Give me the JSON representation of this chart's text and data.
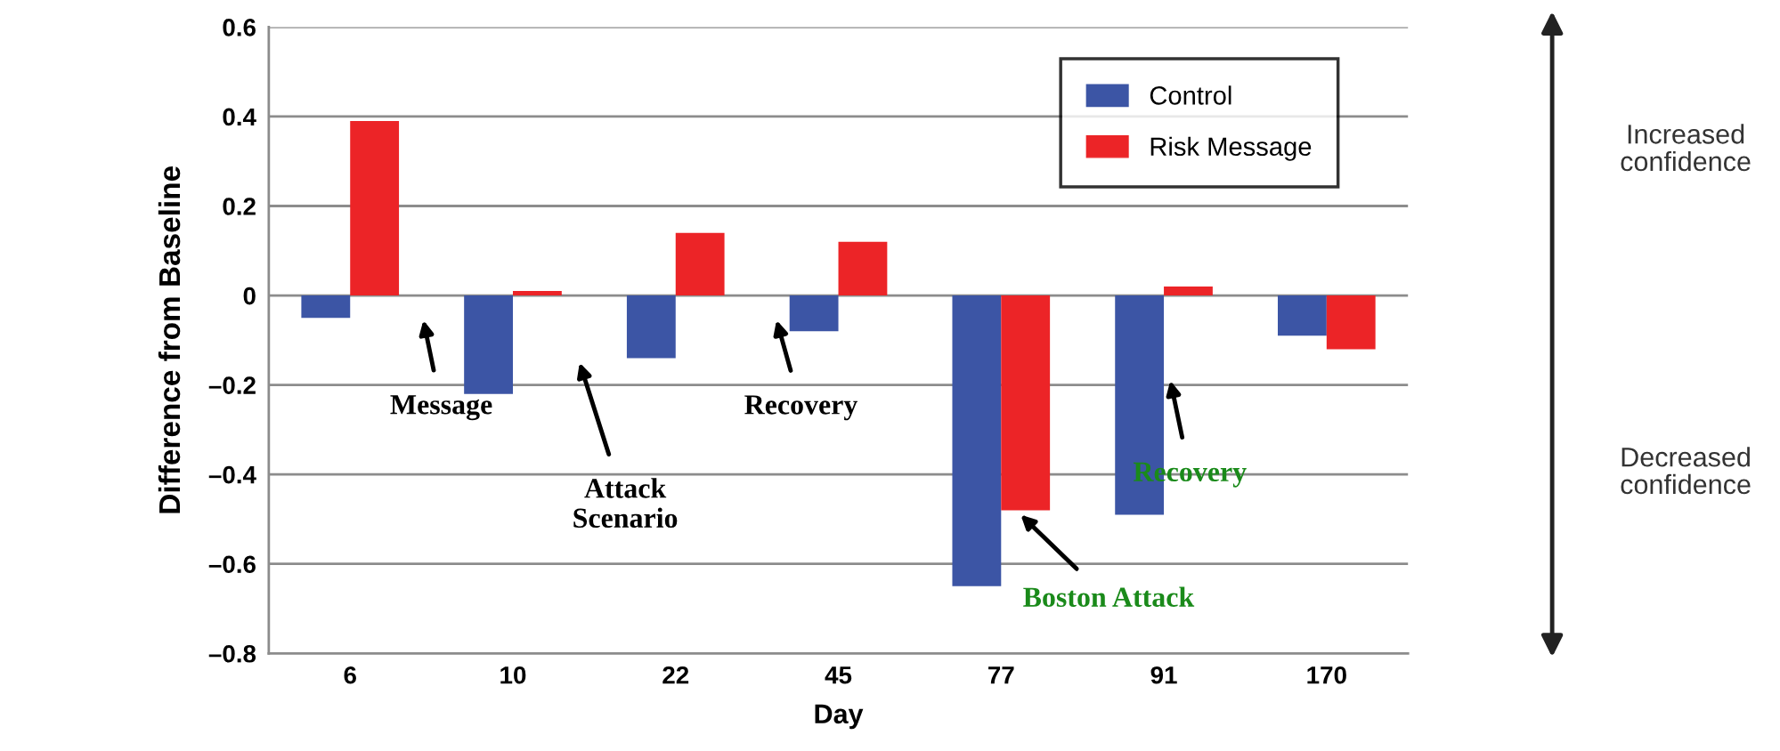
{
  "chart_data": {
    "type": "bar",
    "xlabel": "Day",
    "ylabel": "Difference from Baseline",
    "categories": [
      "6",
      "10",
      "22",
      "45",
      "77",
      "91",
      "170"
    ],
    "series": [
      {
        "name": "Control",
        "color": "#3c55a5",
        "values": [
          -0.05,
          -0.22,
          -0.14,
          -0.08,
          -0.65,
          -0.49,
          -0.09
        ]
      },
      {
        "name": "Risk Message",
        "color": "#ec2427",
        "values": [
          0.39,
          0.01,
          0.14,
          0.12,
          -0.48,
          0.02,
          -0.12
        ]
      }
    ],
    "ylim": [
      -0.8,
      0.6
    ],
    "yticks": [
      {
        "value": -0.8,
        "label": "–0.8"
      },
      {
        "value": -0.6,
        "label": "–0.6"
      },
      {
        "value": -0.4,
        "label": "–0.4"
      },
      {
        "value": -0.2,
        "label": "–0.2"
      },
      0,
      0.2,
      0.4,
      0.6
    ],
    "grid": "y",
    "legend": "top right",
    "annotations": [
      "Message",
      "Attack\nScenario",
      "Recovery",
      "Boston Attack",
      "Recovery",
      "Increased\nconfidence",
      "Decreased\nconfidence"
    ]
  }
}
